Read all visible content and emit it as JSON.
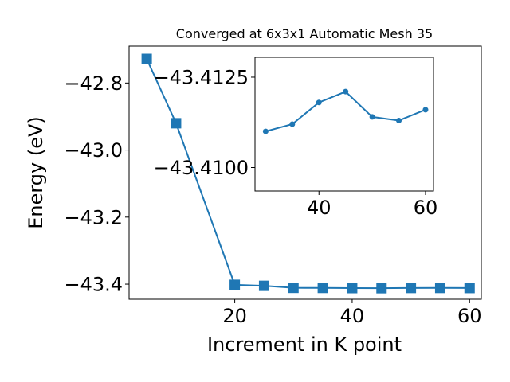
{
  "chart_data": [
    {
      "type": "line",
      "title": "Converged at 6x3x1 Automatic Mesh 35",
      "xlabel": "Increment in K point",
      "ylabel": "Energy (eV)",
      "xlim": [
        2,
        62
      ],
      "ylim": [
        -43.445,
        -42.69
      ],
      "xticks": [
        20,
        40,
        60
      ],
      "yticks": [
        -42.8,
        -43.0,
        -43.2,
        -43.4
      ],
      "ytick_labels": [
        "−42.8",
        "−43.0",
        "−43.2",
        "−43.4"
      ],
      "marker": "square",
      "color": "#1f77b4",
      "grid": false,
      "series": [
        {
          "x": [
            5,
            10,
            20,
            25,
            30,
            35,
            40,
            45,
            50,
            55,
            60
          ],
          "y": [
            -42.728,
            -42.92,
            -43.402,
            -43.405,
            -43.411,
            -43.4112,
            -43.4118,
            -43.4121,
            -43.4114,
            -43.4113,
            -43.4116
          ]
        }
      ]
    },
    {
      "type": "line",
      "role": "inset",
      "xlim": [
        28,
        61.5
      ],
      "ylim": [
        -43.40935,
        -43.41305
      ],
      "xticks": [
        40,
        60
      ],
      "yticks": [
        -43.4125,
        -43.41
      ],
      "ytick_labels": [
        "−43.4125",
        "−43.4100"
      ],
      "marker": "circle",
      "color": "#1f77b4",
      "grid": false,
      "series": [
        {
          "x": [
            30,
            35,
            40,
            45,
            50,
            55,
            60
          ],
          "y": [
            -43.411,
            -43.4112,
            -43.4118,
            -43.4121,
            -43.4114,
            -43.4113,
            -43.4116
          ]
        }
      ]
    }
  ]
}
